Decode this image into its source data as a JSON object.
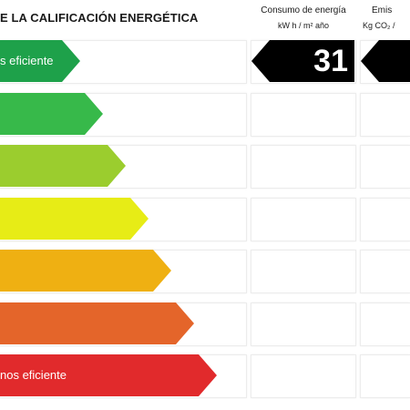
{
  "header": {
    "title": "E LA CALIFICACIÓN ENERGÉTICA",
    "consumption_title": "Consumo de energía",
    "consumption_unit": "kW h / m² año",
    "emissions_title": "Emis",
    "emissions_unit": "Kg CO₂ /"
  },
  "rating": {
    "top_label": "s eficiente",
    "bottom_label": "nos eficiente",
    "classes": [
      {
        "color": "#1ea14a"
      },
      {
        "color": "#37b94a"
      },
      {
        "color": "#9bcd2e"
      },
      {
        "color": "#e7ec16"
      },
      {
        "color": "#efb012"
      },
      {
        "color": "#e4652a"
      },
      {
        "color": "#e12a2c"
      }
    ]
  },
  "consumption": {
    "value": "31",
    "row": 1
  }
}
